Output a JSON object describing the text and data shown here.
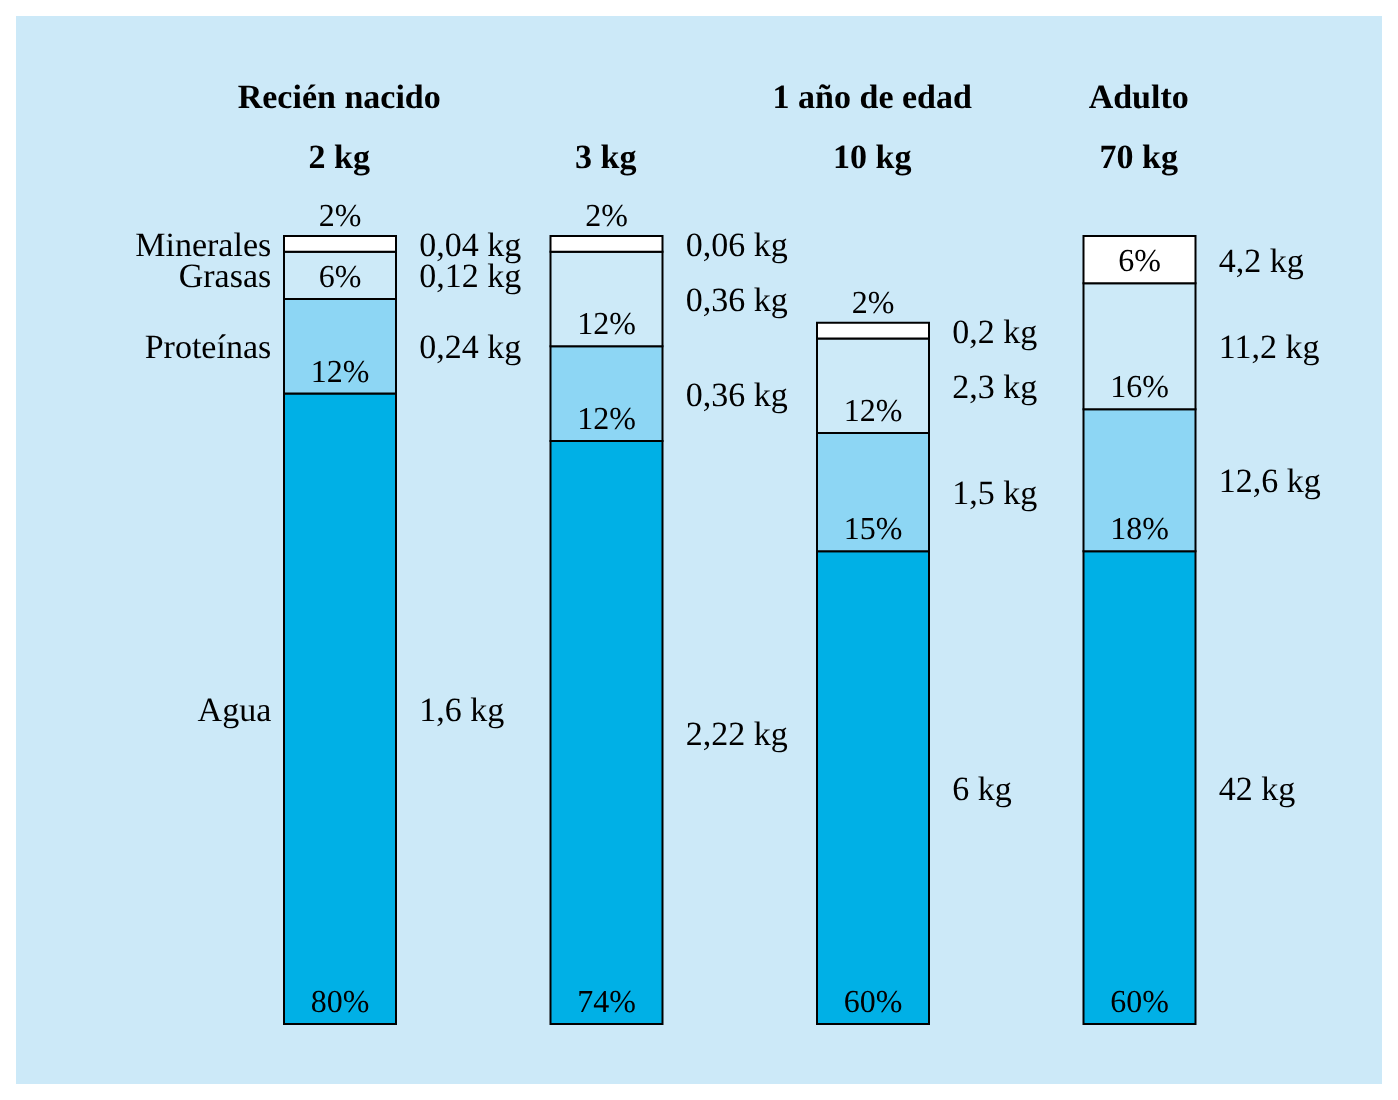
{
  "chart_data": {
    "type": "bar",
    "stacked": true,
    "categories": [
      "2 kg",
      "3 kg",
      "10 kg",
      "70 kg"
    ],
    "series": [
      {
        "name": "Agua",
        "color": "#00b0e6",
        "values": [
          80,
          74,
          60,
          60
        ],
        "value_labels": [
          "80%",
          "74%",
          "60%",
          "60%"
        ]
      },
      {
        "name": "Proteínas",
        "color": "#8dd6f4",
        "values": [
          12,
          12,
          15,
          18
        ],
        "value_labels": [
          "12%",
          "12%",
          "15%",
          "18%"
        ]
      },
      {
        "name": "Grasas",
        "color": "#cdeaf8",
        "values": [
          6,
          12,
          12,
          16
        ],
        "value_labels": [
          "6%",
          "12%",
          "12%",
          "16%"
        ]
      },
      {
        "name": "Minerales",
        "color": "#ffffff",
        "values": [
          2,
          2,
          2,
          6
        ],
        "value_labels": [
          "2%",
          "2%",
          "2%",
          "6%"
        ]
      }
    ],
    "annotations": [
      "Recién nacido",
      "1 año de edad",
      "Adulto",
      "1,6 kg",
      "0,24 kg",
      "0,12 kg",
      "0,04 kg",
      "2,22 kg",
      "0,36 kg",
      "0,36 kg",
      "0,06 kg",
      "6 kg",
      "1,5 kg",
      "2,3 kg",
      "0,2 kg",
      "42 kg",
      "12,6 kg",
      "11,2 kg",
      "4,2 kg"
    ]
  }
}
